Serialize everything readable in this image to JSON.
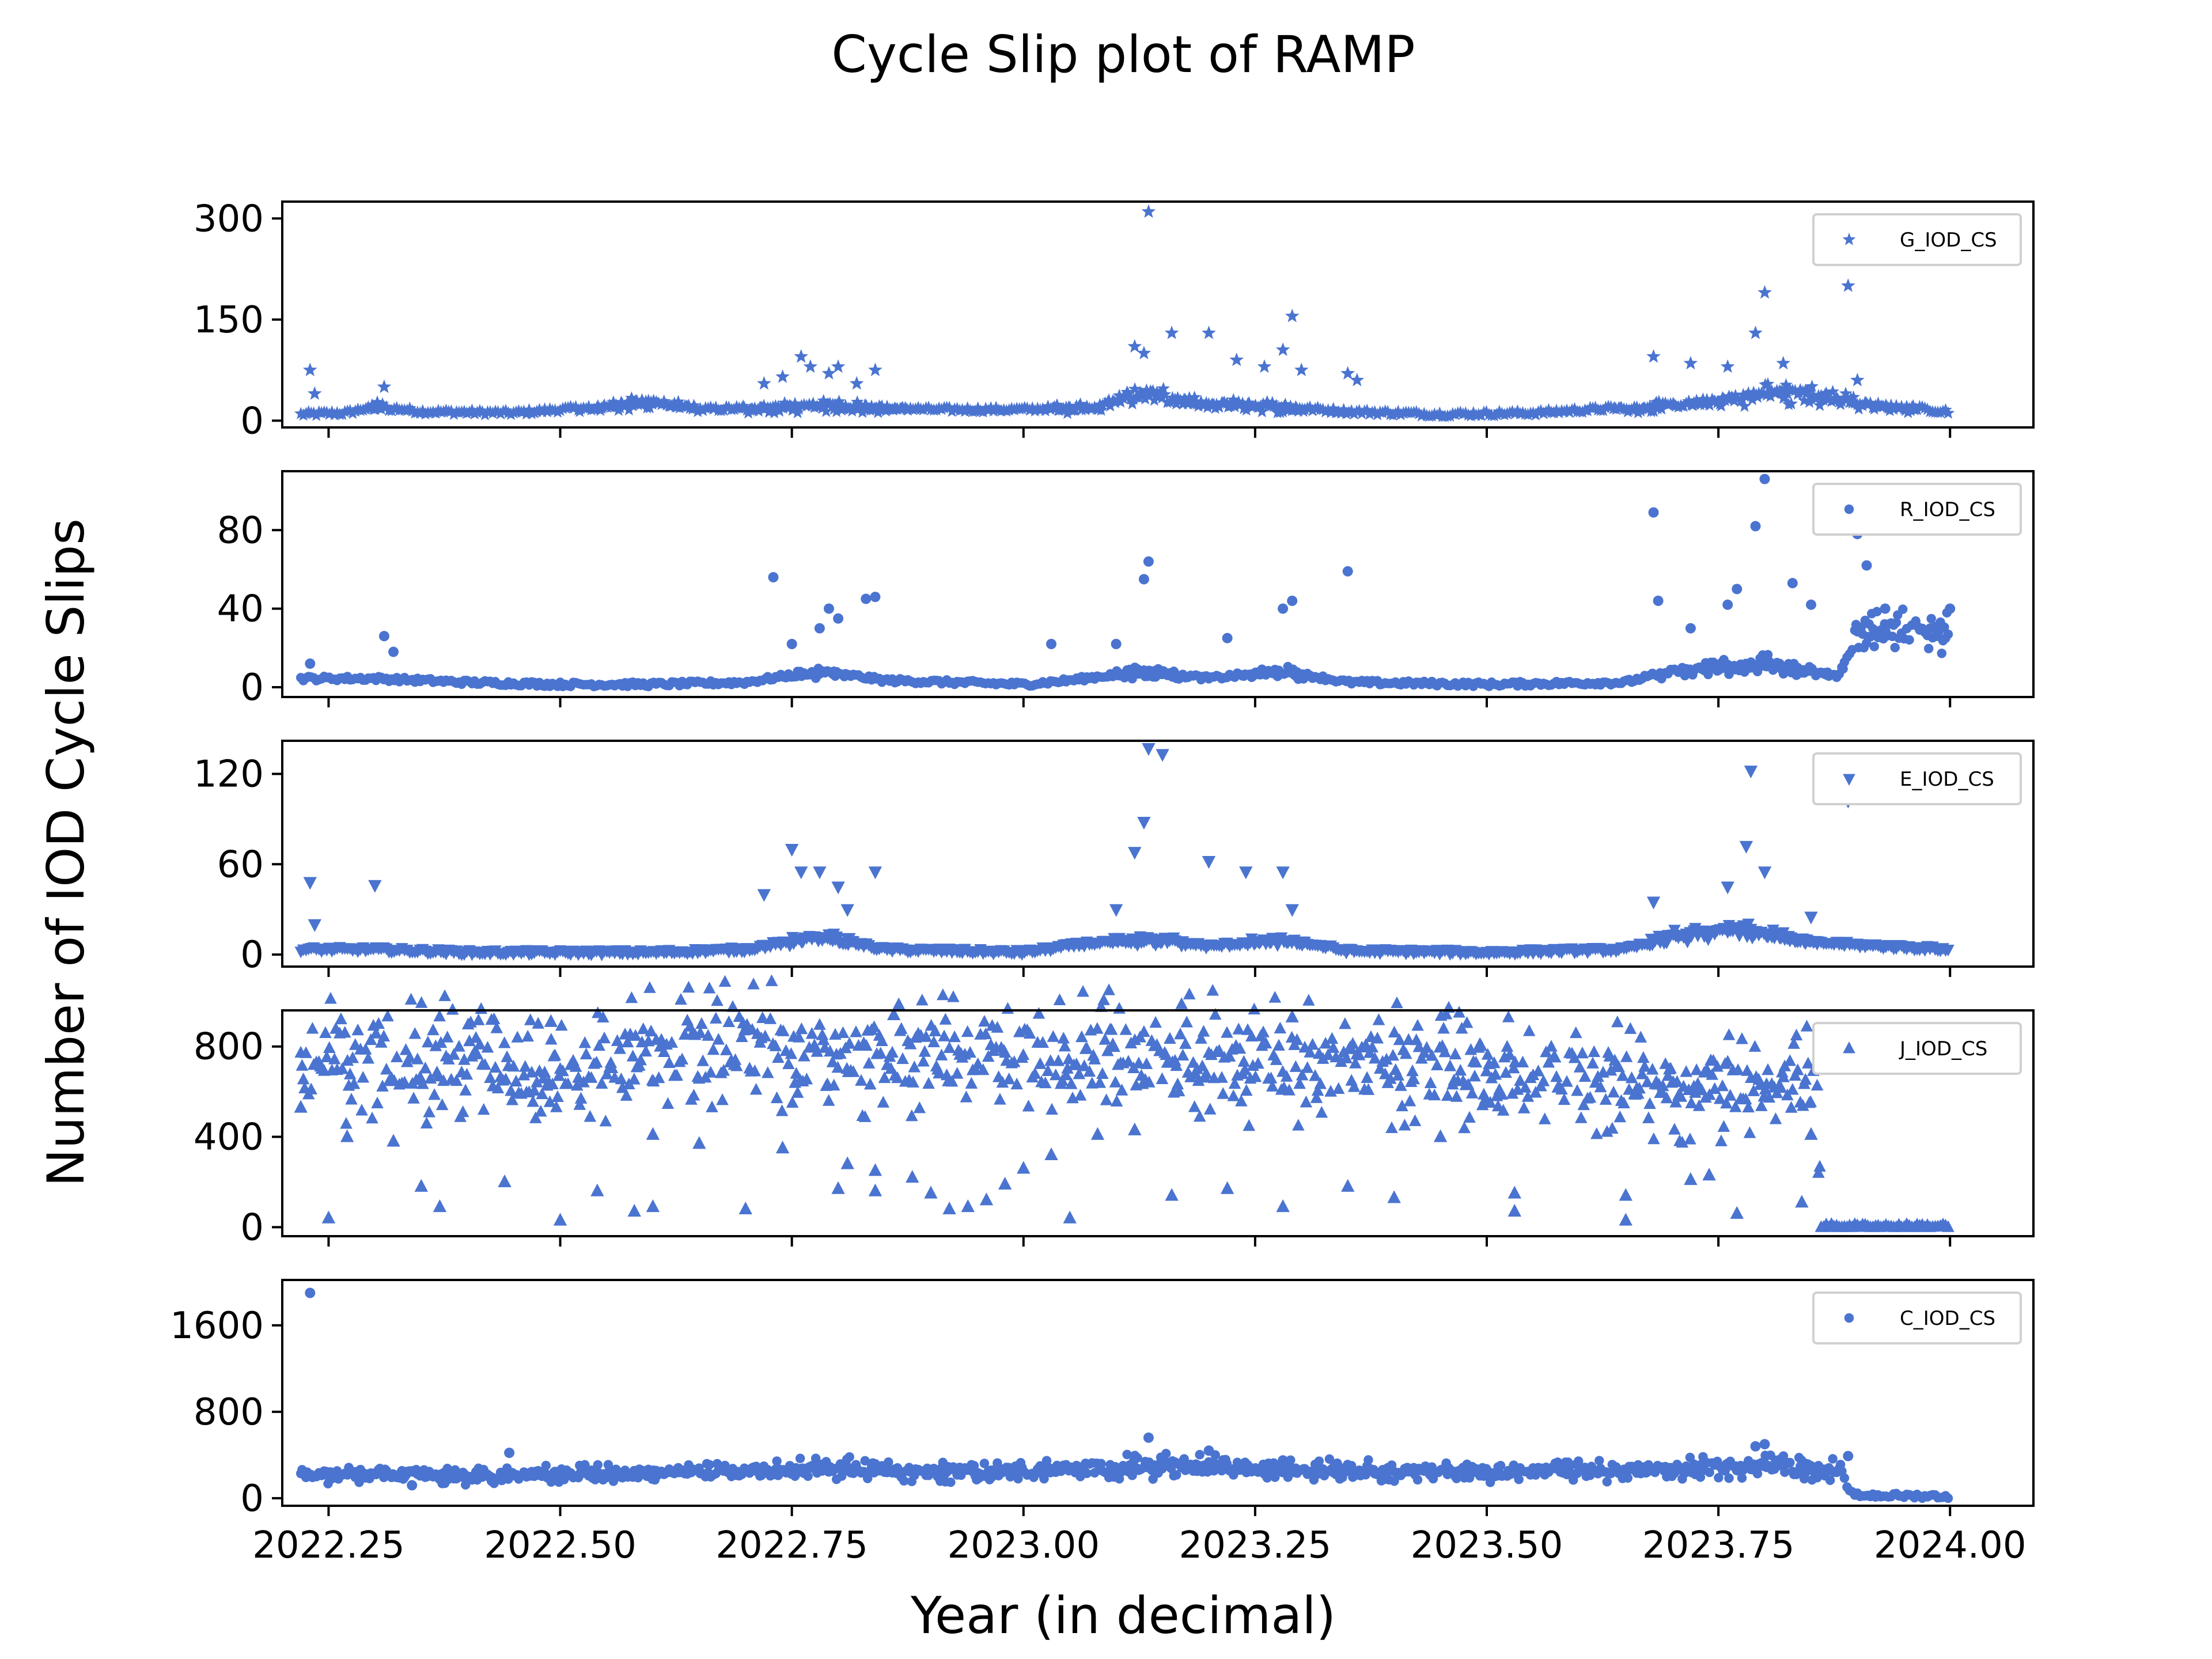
{
  "chart_data": {
    "type": "scatter",
    "title": "Cycle Slip plot of RAMP",
    "xlabel": "Year (in decimal)",
    "ylabel": "Number of IOD Cycle Slips",
    "xlim": [
      2022.2,
      2024.09
    ],
    "x_ticks": [
      2022.25,
      2022.5,
      2022.75,
      2023.0,
      2023.25,
      2023.5,
      2023.75,
      2024.0
    ],
    "x_tick_labels": [
      "2022.25",
      "2022.50",
      "2022.75",
      "2023.00",
      "2023.25",
      "2023.50",
      "2023.75",
      "2024.00"
    ],
    "x_start": 2022.22,
    "x_end": 2024.0,
    "color": "#4a74d0",
    "grid": false,
    "legend_position": "top-right",
    "panels": [
      {
        "name": "G_IOD_CS",
        "marker": "star",
        "ylim": [
          -10,
          325
        ],
        "yticks": [
          0,
          150,
          300
        ],
        "ytick_labels": [
          "0",
          "150",
          "300"
        ],
        "baseline": [
          [
            2022.22,
            8
          ],
          [
            2022.27,
            10
          ],
          [
            2022.3,
            20
          ],
          [
            2022.35,
            12
          ],
          [
            2022.45,
            10
          ],
          [
            2022.55,
            20
          ],
          [
            2022.6,
            28
          ],
          [
            2022.65,
            15
          ],
          [
            2022.72,
            18
          ],
          [
            2022.8,
            22
          ],
          [
            2022.9,
            15
          ],
          [
            2023.0,
            15
          ],
          [
            2023.08,
            20
          ],
          [
            2023.13,
            40
          ],
          [
            2023.18,
            25
          ],
          [
            2023.25,
            22
          ],
          [
            2023.35,
            12
          ],
          [
            2023.45,
            8
          ],
          [
            2023.55,
            10
          ],
          [
            2023.65,
            18
          ],
          [
            2023.75,
            28
          ],
          [
            2023.8,
            40
          ],
          [
            2023.85,
            40
          ],
          [
            2023.9,
            25
          ],
          [
            2024.0,
            12
          ]
        ],
        "peaks": [
          [
            2022.23,
            75
          ],
          [
            2022.235,
            40
          ],
          [
            2022.31,
            50
          ],
          [
            2022.72,
            55
          ],
          [
            2022.74,
            65
          ],
          [
            2022.76,
            95
          ],
          [
            2022.77,
            80
          ],
          [
            2022.79,
            70
          ],
          [
            2022.8,
            80
          ],
          [
            2022.82,
            55
          ],
          [
            2022.84,
            75
          ],
          [
            2023.12,
            110
          ],
          [
            2023.13,
            100
          ],
          [
            2023.135,
            310
          ],
          [
            2023.16,
            130
          ],
          [
            2023.2,
            130
          ],
          [
            2023.23,
            90
          ],
          [
            2023.26,
            80
          ],
          [
            2023.28,
            105
          ],
          [
            2023.29,
            155
          ],
          [
            2023.3,
            75
          ],
          [
            2023.35,
            70
          ],
          [
            2023.36,
            60
          ],
          [
            2023.68,
            95
          ],
          [
            2023.72,
            85
          ],
          [
            2023.76,
            80
          ],
          [
            2023.79,
            130
          ],
          [
            2023.8,
            190
          ],
          [
            2023.82,
            85
          ],
          [
            2023.89,
            200
          ],
          [
            2023.9,
            60
          ]
        ]
      },
      {
        "name": "R_IOD_CS",
        "marker": "circle",
        "ylim": [
          -5,
          110
        ],
        "yticks": [
          0,
          40,
          80
        ],
        "ytick_labels": [
          "0",
          "40",
          "80"
        ],
        "baseline": [
          [
            2022.22,
            4
          ],
          [
            2022.3,
            4
          ],
          [
            2022.4,
            2
          ],
          [
            2022.5,
            1
          ],
          [
            2022.6,
            1
          ],
          [
            2022.7,
            2
          ],
          [
            2022.78,
            8
          ],
          [
            2022.85,
            3
          ],
          [
            2023.0,
            1
          ],
          [
            2023.05,
            3
          ],
          [
            2023.13,
            8
          ],
          [
            2023.2,
            4
          ],
          [
            2023.28,
            8
          ],
          [
            2023.35,
            2
          ],
          [
            2023.5,
            1
          ],
          [
            2023.65,
            2
          ],
          [
            2023.7,
            8
          ],
          [
            2023.8,
            12
          ],
          [
            2023.88,
            5
          ],
          [
            2023.9,
            30
          ],
          [
            2024.0,
            28
          ]
        ],
        "peaks": [
          [
            2022.23,
            12
          ],
          [
            2022.31,
            26
          ],
          [
            2022.32,
            18
          ],
          [
            2022.73,
            56
          ],
          [
            2022.75,
            22
          ],
          [
            2022.78,
            30
          ],
          [
            2022.79,
            40
          ],
          [
            2022.8,
            35
          ],
          [
            2022.83,
            45
          ],
          [
            2022.84,
            46
          ],
          [
            2023.03,
            22
          ],
          [
            2023.1,
            22
          ],
          [
            2023.13,
            55
          ],
          [
            2023.135,
            64
          ],
          [
            2023.22,
            25
          ],
          [
            2023.28,
            40
          ],
          [
            2023.29,
            44
          ],
          [
            2023.35,
            59
          ],
          [
            2023.68,
            89
          ],
          [
            2023.685,
            44
          ],
          [
            2023.72,
            30
          ],
          [
            2023.76,
            42
          ],
          [
            2023.77,
            50
          ],
          [
            2023.79,
            82
          ],
          [
            2023.8,
            106
          ],
          [
            2023.83,
            53
          ],
          [
            2023.85,
            42
          ],
          [
            2023.9,
            78
          ],
          [
            2023.91,
            62
          ],
          [
            2023.93,
            40
          ],
          [
            2024.0,
            40
          ]
        ]
      },
      {
        "name": "E_IOD_CS",
        "marker": "triangle-down",
        "ylim": [
          -8,
          142
        ],
        "yticks": [
          0,
          60,
          120
        ],
        "ytick_labels": [
          "0",
          "60",
          "120"
        ],
        "baseline": [
          [
            2022.22,
            3
          ],
          [
            2022.3,
            3
          ],
          [
            2022.4,
            1
          ],
          [
            2022.5,
            1
          ],
          [
            2022.6,
            1
          ],
          [
            2022.7,
            3
          ],
          [
            2022.78,
            12
          ],
          [
            2022.85,
            3
          ],
          [
            2023.0,
            1
          ],
          [
            2023.08,
            8
          ],
          [
            2023.15,
            10
          ],
          [
            2023.2,
            5
          ],
          [
            2023.28,
            10
          ],
          [
            2023.35,
            2
          ],
          [
            2023.5,
            1
          ],
          [
            2023.65,
            3
          ],
          [
            2023.7,
            12
          ],
          [
            2023.78,
            18
          ],
          [
            2023.85,
            8
          ],
          [
            2023.9,
            6
          ],
          [
            2024.0,
            3
          ]
        ],
        "peaks": [
          [
            2022.23,
            48
          ],
          [
            2022.235,
            20
          ],
          [
            2022.3,
            46
          ],
          [
            2022.72,
            40
          ],
          [
            2022.75,
            70
          ],
          [
            2022.76,
            55
          ],
          [
            2022.78,
            55
          ],
          [
            2022.8,
            45
          ],
          [
            2022.81,
            30
          ],
          [
            2022.84,
            55
          ],
          [
            2023.1,
            30
          ],
          [
            2023.12,
            68
          ],
          [
            2023.13,
            88
          ],
          [
            2023.135,
            137
          ],
          [
            2023.15,
            133
          ],
          [
            2023.2,
            62
          ],
          [
            2023.24,
            55
          ],
          [
            2023.28,
            55
          ],
          [
            2023.29,
            30
          ],
          [
            2023.68,
            35
          ],
          [
            2023.76,
            45
          ],
          [
            2023.78,
            72
          ],
          [
            2023.785,
            122
          ],
          [
            2023.8,
            55
          ],
          [
            2023.89,
            102
          ],
          [
            2023.85,
            25
          ]
        ]
      },
      {
        "name": "J_IOD_CS",
        "marker": "triangle-up",
        "ylim": [
          -40,
          960
        ],
        "yticks": [
          0,
          400,
          800
        ],
        "ytick_labels": [
          "0",
          "400",
          "800"
        ],
        "baseline": [
          [
            2022.22,
            700
          ],
          [
            2022.3,
            780
          ],
          [
            2022.4,
            720
          ],
          [
            2022.5,
            650
          ],
          [
            2022.6,
            780
          ],
          [
            2022.7,
            800
          ],
          [
            2022.8,
            760
          ],
          [
            2022.9,
            760
          ],
          [
            2023.0,
            750
          ],
          [
            2023.1,
            760
          ],
          [
            2023.2,
            760
          ],
          [
            2023.3,
            720
          ],
          [
            2023.4,
            720
          ],
          [
            2023.5,
            680
          ],
          [
            2023.6,
            680
          ],
          [
            2023.7,
            620
          ],
          [
            2023.8,
            640
          ],
          [
            2023.855,
            640
          ],
          [
            2023.86,
            0
          ],
          [
            2024.0,
            0
          ]
        ],
        "peaks": [
          [
            2022.22,
            530
          ],
          [
            2022.25,
            40
          ],
          [
            2022.27,
            400
          ],
          [
            2022.32,
            380
          ],
          [
            2022.35,
            180
          ],
          [
            2022.37,
            90
          ],
          [
            2022.44,
            200
          ],
          [
            2022.5,
            30
          ],
          [
            2022.54,
            160
          ],
          [
            2022.58,
            70
          ],
          [
            2022.6,
            90
          ],
          [
            2022.6,
            410
          ],
          [
            2022.65,
            370
          ],
          [
            2022.7,
            80
          ],
          [
            2022.74,
            350
          ],
          [
            2022.8,
            170
          ],
          [
            2022.81,
            280
          ],
          [
            2022.84,
            250
          ],
          [
            2022.84,
            160
          ],
          [
            2022.88,
            220
          ],
          [
            2022.9,
            150
          ],
          [
            2022.92,
            80
          ],
          [
            2022.94,
            90
          ],
          [
            2022.96,
            120
          ],
          [
            2022.98,
            190
          ],
          [
            2023.0,
            260
          ],
          [
            2023.03,
            320
          ],
          [
            2023.05,
            40
          ],
          [
            2023.08,
            410
          ],
          [
            2023.12,
            430
          ],
          [
            2023.16,
            140
          ],
          [
            2023.22,
            170
          ],
          [
            2023.28,
            90
          ],
          [
            2023.35,
            180
          ],
          [
            2023.4,
            130
          ],
          [
            2023.45,
            400
          ],
          [
            2023.53,
            70
          ],
          [
            2023.53,
            150
          ],
          [
            2023.65,
            30
          ],
          [
            2023.65,
            140
          ],
          [
            2023.72,
            210
          ],
          [
            2023.74,
            230
          ],
          [
            2023.77,
            60
          ],
          [
            2023.84,
            110
          ],
          [
            2023.85,
            410
          ],
          [
            2022.86,
            940
          ],
          [
            2023.29,
            930
          ],
          [
            2022.49,
            910
          ]
        ]
      },
      {
        "name": "C_IOD_CS",
        "marker": "circle",
        "ylim": [
          -70,
          2020
        ],
        "yticks": [
          0,
          800,
          1600
        ],
        "ytick_labels": [
          "0",
          "800",
          "1600"
        ],
        "baseline": [
          [
            2022.22,
            210
          ],
          [
            2022.3,
            230
          ],
          [
            2022.4,
            200
          ],
          [
            2022.5,
            220
          ],
          [
            2022.6,
            230
          ],
          [
            2022.7,
            240
          ],
          [
            2022.8,
            280
          ],
          [
            2022.9,
            240
          ],
          [
            2023.0,
            250
          ],
          [
            2023.1,
            290
          ],
          [
            2023.2,
            300
          ],
          [
            2023.3,
            270
          ],
          [
            2023.4,
            250
          ],
          [
            2023.5,
            240
          ],
          [
            2023.6,
            250
          ],
          [
            2023.7,
            260
          ],
          [
            2023.78,
            310
          ],
          [
            2023.85,
            270
          ],
          [
            2023.88,
            270
          ],
          [
            2023.895,
            20
          ],
          [
            2024.0,
            10
          ]
        ],
        "peaks": [
          [
            2022.23,
            1900
          ],
          [
            2022.445,
            420
          ],
          [
            2022.34,
            120
          ],
          [
            2023.135,
            560
          ],
          [
            2023.2,
            440
          ],
          [
            2023.28,
            350
          ],
          [
            2023.79,
            480
          ],
          [
            2023.8,
            500
          ],
          [
            2023.89,
            390
          ]
        ]
      }
    ]
  }
}
